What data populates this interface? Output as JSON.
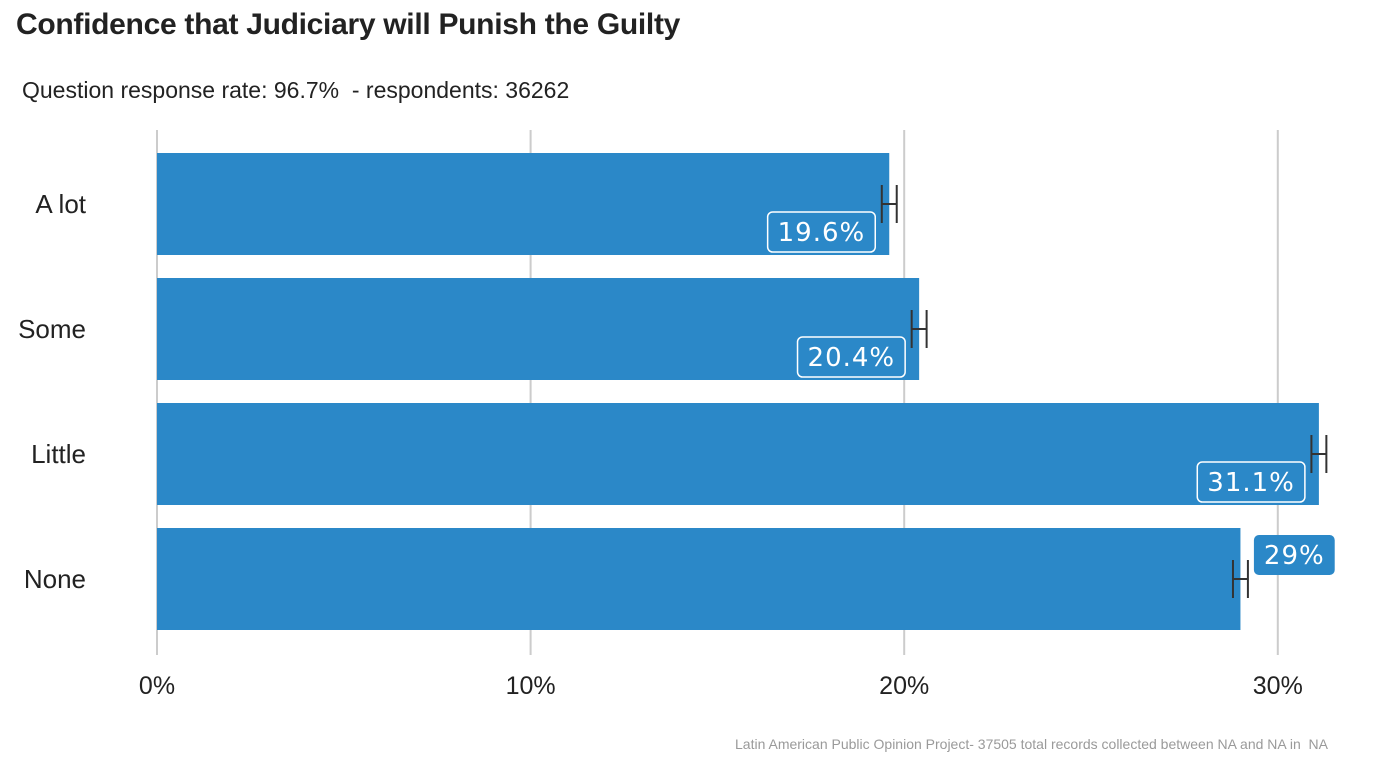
{
  "title": "Confidence that Judiciary will Punish the Guilty",
  "subtitle": "Question response rate: 96.7%  - respondents: 36262",
  "caption": "Latin American Public Opinion Project- 37505 total records collected between NA and NA in  NA",
  "colors": {
    "bar": "#2B88C8",
    "grid": "#cccccc",
    "error_bar": "#333333",
    "label_text": "#ffffff",
    "label_border": "#ffffff"
  },
  "chart_data": {
    "type": "bar",
    "orientation": "horizontal",
    "categories": [
      "A lot",
      "Some",
      "Little",
      "None"
    ],
    "values": [
      19.6,
      20.4,
      31.1,
      29
    ],
    "data_labels": [
      "19.6%",
      "20.4%",
      "31.1%",
      "29%"
    ],
    "error_bars": [
      {
        "low": 19.4,
        "high": 19.8
      },
      {
        "low": 20.2,
        "high": 20.6
      },
      {
        "low": 30.9,
        "high": 31.3
      },
      {
        "low": 28.8,
        "high": 29.2
      }
    ],
    "xlim": [
      0,
      31.5
    ],
    "x_ticks": [
      0,
      10,
      20,
      30
    ],
    "x_tick_labels": [
      "0%",
      "10%",
      "20%",
      "30%"
    ],
    "grid": "vertical",
    "xlabel": "",
    "ylabel": ""
  }
}
